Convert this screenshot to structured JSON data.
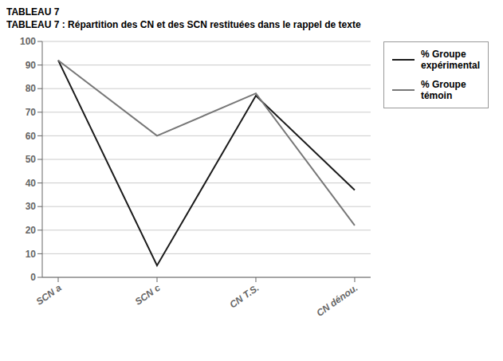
{
  "chart_data": {
    "type": "line",
    "title": "TABLEAU 7 : Répartition des CN et des SCN restituées dans le rappel de texte",
    "annotations": [
      "TABLEAU 7"
    ],
    "categories": [
      "SCN a",
      "SCN c",
      "CN T.S.",
      "CN dénou."
    ],
    "series": [
      {
        "name": "% Groupe\nexpérimental",
        "color": "#1a1a1a",
        "values": [
          92,
          5,
          77,
          37
        ]
      },
      {
        "name": "% Groupe\ntémoin",
        "color": "#777777",
        "values": [
          92,
          60,
          78,
          22
        ]
      }
    ],
    "ylim": [
      0,
      100
    ],
    "yticks": [
      0,
      10,
      20,
      30,
      40,
      50,
      60,
      70,
      80,
      90,
      100
    ],
    "grid": true,
    "legend": "right"
  }
}
